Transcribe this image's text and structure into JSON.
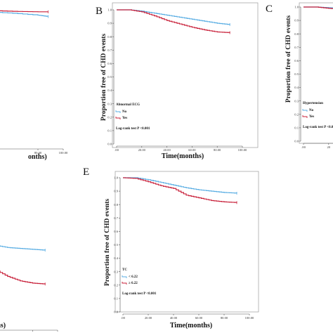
{
  "colors": {
    "series_no": "#5aaee3",
    "series_yes": "#c8203a"
  },
  "chart_data": [
    {
      "panel": "",
      "type": "line",
      "ylabel": "",
      "xlabel": "onths)",
      "xticks": [
        "80.00",
        "100.00"
      ],
      "xlim": [
        0,
        100
      ],
      "ylim": [
        0.7,
        1.0
      ],
      "series": [
        {
          "name": "",
          "x": [
            0,
            20,
            40,
            60,
            80,
            88
          ],
          "y": [
            0.985,
            0.98,
            0.975,
            0.972,
            0.968,
            0.965
          ]
        },
        {
          "name": "",
          "x": [
            0,
            20,
            40,
            60,
            80,
            88
          ],
          "y": [
            0.985,
            0.982,
            0.978,
            0.976,
            0.975,
            0.975
          ]
        }
      ]
    },
    {
      "panel": "B",
      "type": "line",
      "ylabel": "Proportion free of CHD events",
      "xlabel": "Time(months)",
      "yticks": [
        "1.0",
        "0.9",
        "0.8",
        "0.7",
        "0.6",
        "0.5",
        "0.4",
        "0.3",
        "0.2",
        "0.1",
        "0.0"
      ],
      "xticks": [
        ".00",
        "20.00",
        "40.00",
        "60.00",
        "80.00",
        "100.00"
      ],
      "xlim": [
        0,
        100
      ],
      "ylim": [
        0,
        1
      ],
      "legend_title": "Abnormal ECG",
      "legend_items": [
        "No",
        "Yes"
      ],
      "annotation": "Log-rank test P <0.001",
      "series": [
        {
          "name": "No",
          "x": [
            0,
            10,
            20,
            30,
            40,
            50,
            60,
            70,
            80,
            90
          ],
          "y": [
            1.0,
            1.0,
            0.99,
            0.975,
            0.96,
            0.945,
            0.93,
            0.915,
            0.9,
            0.89
          ]
        },
        {
          "name": "Yes",
          "x": [
            0,
            10,
            20,
            30,
            40,
            50,
            60,
            70,
            80,
            90
          ],
          "y": [
            1.0,
            1.0,
            0.985,
            0.955,
            0.92,
            0.895,
            0.87,
            0.85,
            0.835,
            0.83
          ]
        }
      ]
    },
    {
      "panel": "C",
      "type": "line",
      "ylabel": "Proportion free of CHD events",
      "xlabel": "",
      "yticks": [
        "1.0",
        "0.9",
        "0.8",
        "0.7",
        "0.6",
        "0.5",
        "0.4",
        "0.3",
        "0.2",
        "0.1",
        "0.0"
      ],
      "xticks": [
        ".00",
        "20"
      ],
      "xlim": [
        0,
        100
      ],
      "ylim": [
        0,
        1
      ],
      "legend_title": "Hypertension",
      "legend_items": [
        "No",
        "Yes"
      ],
      "annotation": "Log-rank test P <0.0",
      "series": [
        {
          "name": "No",
          "x": [
            0,
            10,
            20,
            30
          ],
          "y": [
            1.0,
            1.0,
            0.995,
            0.99
          ]
        },
        {
          "name": "Yes",
          "x": [
            0,
            10,
            20,
            30
          ],
          "y": [
            1.0,
            1.0,
            0.99,
            0.985
          ]
        }
      ]
    },
    {
      "panel": "",
      "type": "line",
      "ylabel": "",
      "xlabel": "ths)",
      "xticks": [
        "80.00",
        "100.00"
      ],
      "xlim": [
        0,
        100
      ],
      "ylim": [
        0.7,
        1.0
      ],
      "series": [
        {
          "name": "",
          "x": [
            50,
            60,
            70,
            80,
            90
          ],
          "y": [
            0.875,
            0.87,
            0.868,
            0.866,
            0.864
          ]
        },
        {
          "name": "",
          "x": [
            50,
            60,
            70,
            80,
            90
          ],
          "y": [
            0.82,
            0.805,
            0.795,
            0.79,
            0.788
          ]
        }
      ]
    },
    {
      "panel": "E",
      "type": "line",
      "ylabel": "Proportion free of CHD events",
      "xlabel": "Time(months)",
      "yticks": [
        "1.0",
        "0.9",
        "0.8",
        "0.7",
        "0.6",
        "0.5",
        "0.4",
        "0.3",
        "0.2",
        "0.1",
        "0.0"
      ],
      "xticks": [
        ".00",
        "20.00",
        "40.00",
        "60.00",
        "80.00",
        "100.00"
      ],
      "xlim": [
        0,
        100
      ],
      "ylim": [
        0,
        1
      ],
      "legend_title": "TC",
      "legend_items": [
        "< 6.22",
        "≥ 6.22"
      ],
      "annotation": "Log-rank test P <0.001",
      "series": [
        {
          "name": "< 6.22",
          "x": [
            0,
            10,
            20,
            30,
            40,
            50,
            60,
            70,
            80,
            90
          ],
          "y": [
            1.0,
            1.0,
            0.985,
            0.965,
            0.945,
            0.925,
            0.91,
            0.9,
            0.89,
            0.885
          ]
        },
        {
          "name": "≥ 6.22",
          "x": [
            0,
            10,
            20,
            30,
            40,
            50,
            60,
            70,
            80,
            90
          ],
          "y": [
            1.0,
            0.995,
            0.97,
            0.94,
            0.92,
            0.87,
            0.85,
            0.83,
            0.82,
            0.815
          ]
        }
      ]
    }
  ]
}
